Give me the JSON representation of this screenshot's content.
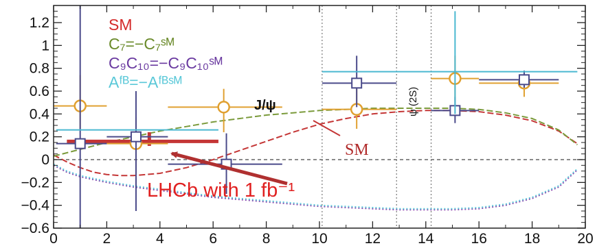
{
  "chart_data": {
    "type": "scatter",
    "title": "",
    "xlabel": "",
    "ylabel": "",
    "xlim": [
      0,
      20
    ],
    "ylim": [
      -0.6,
      1.35
    ],
    "x_ticks": [
      0,
      2,
      4,
      6,
      8,
      10,
      12,
      14,
      16,
      18,
      20
    ],
    "y_ticks": [
      -0.6,
      -0.4,
      -0.2,
      0,
      0.2,
      0.4,
      0.6,
      0.8,
      1,
      1.2
    ],
    "y_tick_labels": [
      "−0.6",
      "−0.4",
      "−0.2",
      "0",
      "0.2",
      "0.4",
      "0.6",
      "0.8",
      "1",
      "1.2"
    ],
    "legend": {
      "placement": "top-left",
      "entries": [
        {
          "label": "SM",
          "color": "#d42a2a"
        },
        {
          "label": "C₇=−C₇ˢᴹ",
          "color": "#6a8a2a"
        },
        {
          "label": "C₉C₁₀=−C₉C₁₀ˢᴹ",
          "color": "#6a3aa0"
        },
        {
          "label": "Aᶠᴮ=−Aᶠᴮˢᴹ",
          "color": "#5ac8d8"
        }
      ]
    },
    "annotations": {
      "jpsi": "J/ψ",
      "psi2s": "ψ (2S)",
      "sm_curve_label": "SM",
      "lhcb_label": "LHCb with 1 fb⁻¹"
    },
    "vetoes": [
      10.1,
      12.9,
      14.2
    ],
    "curves": [
      {
        "name": "SM",
        "color": "#c43535",
        "dash": "dashed",
        "x": [
          0.0,
          0.5,
          1.0,
          1.5,
          2.0,
          2.5,
          3.0,
          4.0,
          5.0,
          6.0,
          7.0,
          8.0,
          9.0,
          10.0,
          11.0,
          12.0,
          13.0,
          14.0,
          15.0,
          16.0,
          17.0,
          18.0,
          19.0,
          19.7
        ],
        "y": [
          0.04,
          -0.02,
          -0.07,
          -0.11,
          -0.13,
          -0.14,
          -0.14,
          -0.12,
          -0.07,
          0.0,
          0.08,
          0.16,
          0.24,
          0.31,
          0.36,
          0.4,
          0.42,
          0.43,
          0.43,
          0.42,
          0.39,
          0.34,
          0.25,
          0.14
        ]
      },
      {
        "name": "C₇=−C₇ˢᴹ",
        "color": "#7a9a3a",
        "dash": "dashed",
        "x": [
          0.0,
          1.0,
          2.0,
          3.0,
          4.0,
          5.0,
          6.0,
          7.0,
          8.0,
          9.0,
          10.0,
          11.0,
          12.0,
          13.0,
          14.0,
          15.0,
          16.0,
          17.0,
          18.0,
          19.0,
          19.7
        ],
        "y": [
          0.03,
          0.09,
          0.15,
          0.2,
          0.25,
          0.29,
          0.33,
          0.36,
          0.39,
          0.41,
          0.43,
          0.44,
          0.45,
          0.45,
          0.45,
          0.45,
          0.44,
          0.41,
          0.36,
          0.26,
          0.13
        ]
      },
      {
        "name": "C₉C₁₀=−C₉C₁₀ˢᴹ",
        "color": "#8a4ab0",
        "dash": "dotted",
        "x": [
          0.0,
          0.5,
          1.0,
          2.0,
          3.0,
          4.0,
          5.0,
          6.0,
          7.0,
          8.0,
          9.0,
          10.0,
          11.0,
          12.0,
          13.0,
          14.0,
          15.0,
          16.0,
          17.0,
          18.0,
          19.0,
          19.7
        ],
        "y": [
          -0.05,
          -0.11,
          -0.15,
          -0.2,
          -0.24,
          -0.27,
          -0.3,
          -0.33,
          -0.35,
          -0.37,
          -0.39,
          -0.41,
          -0.42,
          -0.43,
          -0.44,
          -0.44,
          -0.44,
          -0.43,
          -0.4,
          -0.34,
          -0.24,
          -0.09
        ]
      },
      {
        "name": "Aᶠᴮ=−Aᶠᴮˢᴹ",
        "color": "#5ac8d8",
        "dash": "dotted",
        "x": [
          0.0,
          0.5,
          1.0,
          2.0,
          3.0,
          4.0,
          5.0,
          6.0,
          7.0,
          8.0,
          9.0,
          10.0,
          11.0,
          12.0,
          13.0,
          14.0,
          15.0,
          16.0,
          17.0,
          18.0,
          19.0,
          19.7
        ],
        "y": [
          -0.04,
          -0.1,
          -0.14,
          -0.19,
          -0.23,
          -0.26,
          -0.29,
          -0.32,
          -0.34,
          -0.36,
          -0.38,
          -0.4,
          -0.41,
          -0.42,
          -0.43,
          -0.43,
          -0.43,
          -0.42,
          -0.39,
          -0.33,
          -0.23,
          -0.08
        ]
      }
    ],
    "series": [
      {
        "name": "SM",
        "color": "#c43535",
        "marker": "none",
        "stroke_width": 5,
        "points": [
          {
            "x": 1.0,
            "x_lo": 0.5,
            "x_hi": 6.2,
            "y": 0.16,
            "y_lo": 0.16,
            "y_hi": 0.16
          },
          {
            "x": 3.6,
            "x_lo": 3.6,
            "x_hi": 3.6,
            "y": 0.18,
            "y_lo": 0.12,
            "y_hi": 0.24
          }
        ]
      },
      {
        "name": "C₇=−C₇ˢᴹ",
        "color": "#e0a030",
        "marker": "circle",
        "points": [
          {
            "x": 1.0,
            "x_lo": 0.0,
            "x_hi": 2.0,
            "y": 0.47,
            "y_lo": 0.27,
            "y_hi": 0.74
          },
          {
            "x": 3.1,
            "x_lo": 2.0,
            "x_hi": 4.3,
            "y": 0.14,
            "y_lo": -0.24,
            "y_hi": 0.37
          },
          {
            "x": 6.4,
            "x_lo": 4.3,
            "x_hi": 8.6,
            "y": 0.46,
            "y_lo": 0.24,
            "y_hi": 0.62
          },
          {
            "x": 11.4,
            "x_lo": 10.1,
            "x_hi": 12.9,
            "y": 0.44,
            "y_lo": 0.27,
            "y_hi": 0.62
          },
          {
            "x": 15.1,
            "x_lo": 14.2,
            "x_hi": 16.0,
            "y": 0.71,
            "y_lo": 0.52,
            "y_hi": 0.91
          },
          {
            "x": 17.7,
            "x_lo": 16.0,
            "x_hi": 19.0,
            "y": 0.67,
            "y_lo": 0.55,
            "y_hi": 0.78
          }
        ]
      },
      {
        "name": "C₉C₁₀=−C₉C₁₀ˢᴹ",
        "color": "#4a4a8a",
        "marker": "square",
        "points": [
          {
            "x": 1.0,
            "x_lo": 0.1,
            "x_hi": 2.0,
            "y": 0.14,
            "y_lo": -0.6,
            "y_hi": 1.35
          },
          {
            "x": 3.1,
            "x_lo": 2.0,
            "x_hi": 4.3,
            "y": 0.2,
            "y_lo": -0.45,
            "y_hi": 0.6
          },
          {
            "x": 6.5,
            "x_lo": 4.3,
            "x_hi": 8.6,
            "y": -0.04,
            "y_lo": -0.3,
            "y_hi": 0.23
          },
          {
            "x": 11.4,
            "x_lo": 10.1,
            "x_hi": 12.9,
            "y": 0.67,
            "y_lo": 0.46,
            "y_hi": 0.91
          },
          {
            "x": 15.1,
            "x_lo": 14.2,
            "x_hi": 16.0,
            "y": 0.43,
            "y_lo": 0.32,
            "y_hi": 0.55
          },
          {
            "x": 17.7,
            "x_lo": 16.0,
            "x_hi": 19.0,
            "y": 0.7,
            "y_lo": 0.63,
            "y_hi": 0.78
          }
        ]
      },
      {
        "name": "Aᶠᴮ=−Aᶠᴮˢᴹ",
        "color": "#4ab8d0",
        "marker": "none",
        "points": [
          {
            "x": 1.0,
            "x_lo": 0.1,
            "x_hi": 6.2,
            "y": 0.26,
            "y_lo": 0.26,
            "y_hi": 0.26
          },
          {
            "x": 15.1,
            "x_lo": 10.1,
            "x_hi": 19.7,
            "y": 0.77,
            "y_lo": 0.77,
            "y_hi": 0.77
          },
          {
            "x": 15.1,
            "x_lo": 15.1,
            "x_hi": 15.1,
            "y": 0.77,
            "y_lo": 0.4,
            "y_hi": 1.3
          }
        ]
      }
    ]
  }
}
